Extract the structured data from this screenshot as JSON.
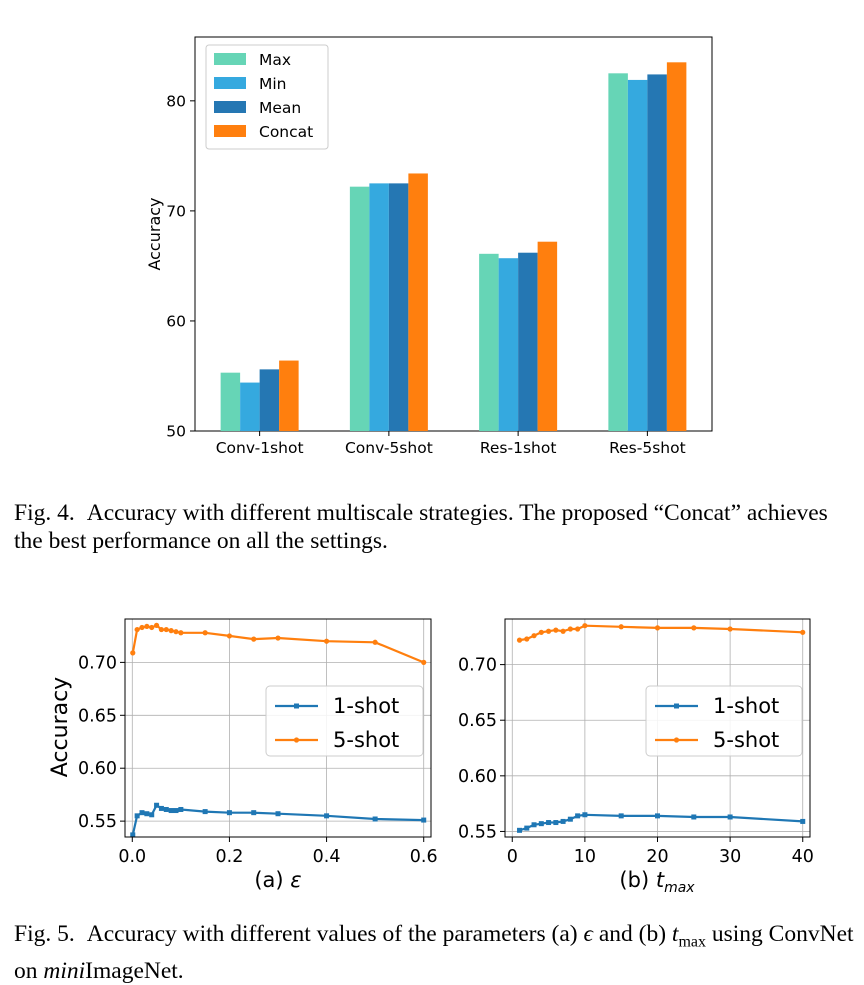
{
  "figure4": {
    "label": "Fig. 4.",
    "caption": "Accuracy with different multiscale strategies. The proposed “Concat” achieves the best performance on all the settings."
  },
  "figure5": {
    "label": "Fig. 5.",
    "caption_before": "Accuracy with different values of the parameters (a) ",
    "caption_eps": "ϵ",
    "caption_mid": " and (b) ",
    "caption_t": "t",
    "caption_sub": "max",
    "caption_after": " using ConvNet on ",
    "caption_italic": "mini",
    "caption_end": "ImageNet."
  },
  "chart_data": [
    {
      "type": "bar",
      "ylabel": "Accuracy",
      "xlabel": "",
      "categories": [
        "Conv-1shot",
        "Conv-5shot",
        "Res-1shot",
        "Res-5shot"
      ],
      "ylim": [
        50,
        85.8
      ],
      "yticks": [
        50,
        60,
        70,
        80
      ],
      "legend_position": "top-left",
      "grid": false,
      "series": [
        {
          "name": "Max",
          "color": "#66d5b6",
          "values": [
            55.3,
            72.2,
            66.1,
            82.5
          ]
        },
        {
          "name": "Min",
          "color": "#35a9df",
          "values": [
            54.4,
            72.5,
            65.7,
            81.9
          ]
        },
        {
          "name": "Mean",
          "color": "#2577b3",
          "values": [
            55.6,
            72.5,
            66.2,
            82.4
          ]
        },
        {
          "name": "Concat",
          "color": "#ff7f0e",
          "values": [
            56.4,
            73.4,
            67.2,
            83.5
          ]
        }
      ]
    },
    {
      "type": "line",
      "sublabel": "(a) ",
      "xsymbol": "ε",
      "ylabel": "Accuracy",
      "xlim": [
        -0.015,
        0.615
      ],
      "ylim": [
        0.535,
        0.741
      ],
      "xticks": [
        "0.0",
        "0.2",
        "0.4",
        "0.6"
      ],
      "yticks": [
        "0.55",
        "0.60",
        "0.65",
        "0.70"
      ],
      "grid": true,
      "legend_position": "center-right",
      "series": [
        {
          "name": "1-shot",
          "color": "#1f77b4",
          "marker": "square",
          "x": [
            0.001,
            0.01,
            0.02,
            0.03,
            0.04,
            0.05,
            0.06,
            0.07,
            0.08,
            0.09,
            0.1,
            0.15,
            0.2,
            0.25,
            0.3,
            0.4,
            0.5,
            0.6
          ],
          "y": [
            0.537,
            0.555,
            0.558,
            0.557,
            0.556,
            0.565,
            0.562,
            0.561,
            0.56,
            0.56,
            0.561,
            0.559,
            0.558,
            0.558,
            0.557,
            0.555,
            0.552,
            0.551
          ]
        },
        {
          "name": "5-shot",
          "color": "#ff7f0e",
          "marker": "circle",
          "x": [
            0.001,
            0.01,
            0.02,
            0.03,
            0.04,
            0.05,
            0.06,
            0.07,
            0.08,
            0.09,
            0.1,
            0.15,
            0.2,
            0.25,
            0.3,
            0.4,
            0.5,
            0.6
          ],
          "y": [
            0.709,
            0.731,
            0.733,
            0.734,
            0.733,
            0.735,
            0.731,
            0.731,
            0.73,
            0.729,
            0.728,
            0.728,
            0.725,
            0.722,
            0.723,
            0.72,
            0.719,
            0.7
          ]
        }
      ]
    },
    {
      "type": "line",
      "sublabel": "(b) ",
      "xsymbol": "t",
      "xsub": "max",
      "ylabel": "",
      "xlim": [
        -1,
        41
      ],
      "ylim": [
        0.545,
        0.741
      ],
      "xticks": [
        "0",
        "10",
        "20",
        "30",
        "40"
      ],
      "yticks": [
        "0.55",
        "0.60",
        "0.65",
        "0.70"
      ],
      "grid": true,
      "legend_position": "center-right",
      "series": [
        {
          "name": "1-shot",
          "color": "#1f77b4",
          "marker": "square",
          "x": [
            1,
            2,
            3,
            4,
            5,
            6,
            7,
            8,
            9,
            10,
            15,
            20,
            25,
            30,
            40
          ],
          "y": [
            0.551,
            0.553,
            0.556,
            0.557,
            0.558,
            0.558,
            0.559,
            0.561,
            0.564,
            0.565,
            0.564,
            0.564,
            0.563,
            0.563,
            0.559
          ]
        },
        {
          "name": "5-shot",
          "color": "#ff7f0e",
          "marker": "circle",
          "x": [
            1,
            2,
            3,
            4,
            5,
            6,
            7,
            8,
            9,
            10,
            15,
            20,
            25,
            30,
            40
          ],
          "y": [
            0.722,
            0.723,
            0.726,
            0.729,
            0.73,
            0.731,
            0.73,
            0.732,
            0.732,
            0.735,
            0.734,
            0.733,
            0.733,
            0.732,
            0.729
          ]
        }
      ]
    }
  ]
}
